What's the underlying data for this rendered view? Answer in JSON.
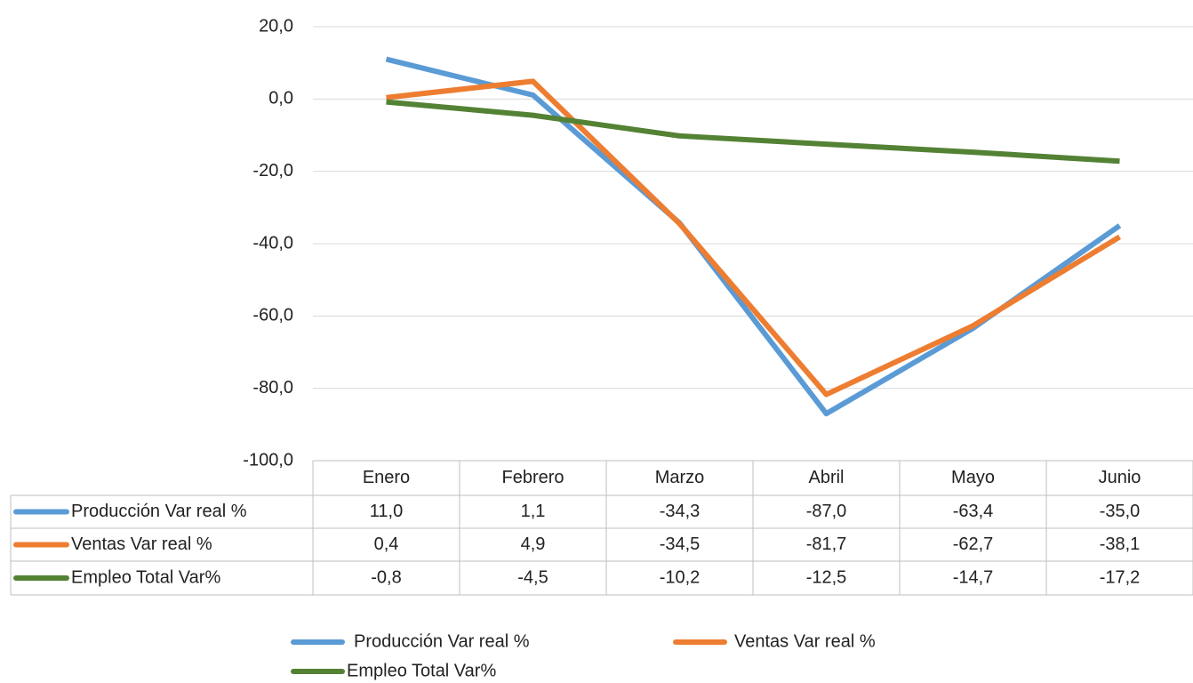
{
  "chart_data": {
    "type": "line",
    "categories": [
      "Enero",
      "Febrero",
      "Marzo",
      "Abril",
      "Mayo",
      "Junio"
    ],
    "series": [
      {
        "name": "Producción Var real %",
        "color": "#5b9bd5",
        "values": [
          11.0,
          1.1,
          -34.3,
          -87.0,
          -63.4,
          -35.0
        ],
        "value_labels": [
          "11,0",
          "1,1",
          "-34,3",
          "-87,0",
          "-63,4",
          "-35,0"
        ]
      },
      {
        "name": "Ventas  Var real %",
        "color": "#ed7d31",
        "values": [
          0.4,
          4.9,
          -34.5,
          -81.7,
          -62.7,
          -38.1
        ],
        "value_labels": [
          "0,4",
          "4,9",
          "-34,5",
          "-81,7",
          "-62,7",
          "-38,1"
        ]
      },
      {
        "name": "Empleo Total Var%",
        "color": "#548235",
        "values": [
          -0.8,
          -4.5,
          -10.2,
          -12.5,
          -14.7,
          -17.2
        ],
        "value_labels": [
          "-0,8",
          "-4,5",
          "-10,2",
          "-12,5",
          "-14,7",
          "-17,2"
        ]
      }
    ],
    "ylim": [
      -100,
      20
    ],
    "yticks": [
      {
        "value": -100,
        "label": "-100,0"
      },
      {
        "value": -80,
        "label": "-80,0"
      },
      {
        "value": -60,
        "label": "-60,0"
      },
      {
        "value": -40,
        "label": "-40,0"
      },
      {
        "value": -20,
        "label": "-20,0"
      },
      {
        "value": 0,
        "label": "0,0"
      },
      {
        "value": 20,
        "label": "20,0"
      }
    ],
    "grid": true,
    "legend": "bottom"
  }
}
